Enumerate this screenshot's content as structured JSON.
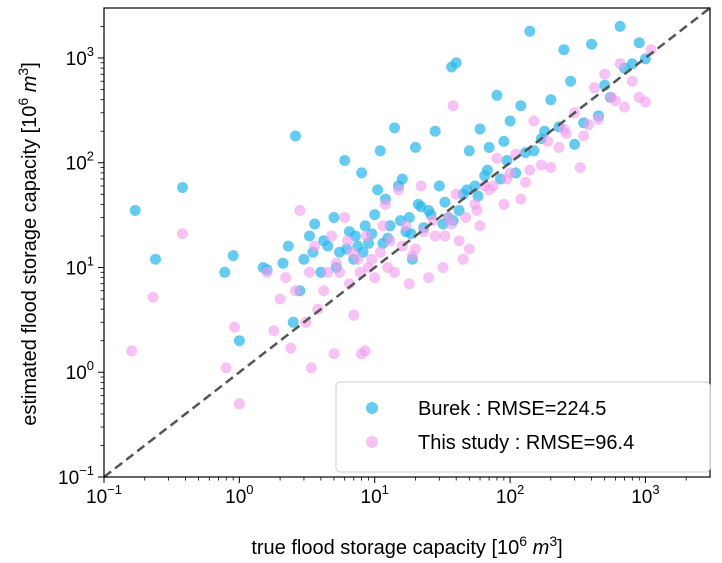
{
  "chart_data": {
    "type": "scatter",
    "xscale": "log",
    "yscale": "log",
    "xlim": [
      0.1,
      3000
    ],
    "ylim": [
      0.1,
      3000
    ],
    "grid": false,
    "legend_placement": "lower-right",
    "xlabel": {
      "main": "true flood storage capacity [10",
      "sup": "6",
      "unit": "m",
      "unit_sup": "3",
      "close": "]"
    },
    "ylabel": {
      "main": "estimated flood storage capacity [10",
      "sup": "6",
      "unit": "m",
      "unit_sup": "3",
      "close": "]"
    },
    "x_ticks": [
      {
        "value": 0.1,
        "base": "10",
        "exp": "−1"
      },
      {
        "value": 1,
        "base": "10",
        "exp": "0"
      },
      {
        "value": 10,
        "base": "10",
        "exp": "1"
      },
      {
        "value": 100,
        "base": "10",
        "exp": "2"
      },
      {
        "value": 1000,
        "base": "10",
        "exp": "3"
      }
    ],
    "y_ticks": [
      {
        "value": 0.1,
        "base": "10",
        "exp": "−1"
      },
      {
        "value": 1,
        "base": "10",
        "exp": "0"
      },
      {
        "value": 10,
        "base": "10",
        "exp": "1"
      },
      {
        "value": 100,
        "base": "10",
        "exp": "2"
      },
      {
        "value": 1000,
        "base": "10",
        "exp": "3"
      }
    ],
    "reference_line": {
      "type": "1:1",
      "style": "dashed",
      "color": "#555555"
    },
    "series": [
      {
        "name": "Burek : RMSE=224.5",
        "color": "#2bb7ea",
        "points": [
          [
            0.17,
            35
          ],
          [
            0.24,
            12
          ],
          [
            0.38,
            58
          ],
          [
            0.78,
            9
          ],
          [
            0.9,
            13
          ],
          [
            1.0,
            2.0
          ],
          [
            1.6,
            9.5
          ],
          [
            2.3,
            16
          ],
          [
            2.5,
            3
          ],
          [
            2.6,
            180
          ],
          [
            3.0,
            12
          ],
          [
            3.3,
            20
          ],
          [
            3.6,
            26
          ],
          [
            4.0,
            9
          ],
          [
            4.5,
            16
          ],
          [
            5,
            30
          ],
          [
            5.5,
            14
          ],
          [
            6,
            105
          ],
          [
            6.5,
            22
          ],
          [
            7,
            12
          ],
          [
            7.5,
            16
          ],
          [
            8,
            80
          ],
          [
            8.5,
            25
          ],
          [
            9,
            17
          ],
          [
            10,
            32
          ],
          [
            10.5,
            55
          ],
          [
            11,
            130
          ],
          [
            11.5,
            17
          ],
          [
            12,
            45
          ],
          [
            13,
            25
          ],
          [
            14,
            215
          ],
          [
            15,
            60
          ],
          [
            16,
            70
          ],
          [
            17,
            22
          ],
          [
            18,
            30
          ],
          [
            19,
            12
          ],
          [
            20,
            140
          ],
          [
            21,
            40
          ],
          [
            23,
            24
          ],
          [
            25,
            35
          ],
          [
            28,
            200
          ],
          [
            30,
            60
          ],
          [
            32,
            26
          ],
          [
            35,
            30
          ],
          [
            37,
            820
          ],
          [
            40,
            900
          ],
          [
            42,
            35
          ],
          [
            45,
            50
          ],
          [
            50,
            130
          ],
          [
            55,
            60
          ],
          [
            60,
            210
          ],
          [
            65,
            75
          ],
          [
            70,
            140
          ],
          [
            80,
            440
          ],
          [
            90,
            160
          ],
          [
            100,
            250
          ],
          [
            110,
            80
          ],
          [
            120,
            350
          ],
          [
            140,
            1800
          ],
          [
            150,
            130
          ],
          [
            170,
            170
          ],
          [
            200,
            400
          ],
          [
            230,
            220
          ],
          [
            250,
            1200
          ],
          [
            280,
            600
          ],
          [
            300,
            150
          ],
          [
            350,
            240
          ],
          [
            400,
            1350
          ],
          [
            450,
            280
          ],
          [
            500,
            550
          ],
          [
            550,
            420
          ],
          [
            650,
            2000
          ],
          [
            700,
            800
          ],
          [
            800,
            880
          ],
          [
            900,
            1400
          ],
          [
            1000,
            980
          ],
          [
            1.5,
            10
          ],
          [
            2.1,
            11
          ],
          [
            2.8,
            6
          ],
          [
            3.5,
            14
          ],
          [
            4.2,
            18
          ],
          [
            5.2,
            10
          ],
          [
            6.2,
            15
          ],
          [
            7.2,
            20
          ],
          [
            8.2,
            14
          ],
          [
            9.5,
            21
          ],
          [
            12.5,
            19
          ],
          [
            15.5,
            28
          ],
          [
            18.5,
            21
          ],
          [
            22,
            38
          ],
          [
            26,
            32
          ],
          [
            33,
            42
          ],
          [
            38,
            28
          ],
          [
            48,
            55
          ],
          [
            58,
            48
          ],
          [
            68,
            85
          ],
          [
            85,
            70
          ],
          [
            95,
            105
          ],
          [
            130,
            125
          ],
          [
            180,
            200
          ]
        ]
      },
      {
        "name": "This study : RMSE=96.4",
        "color": "#f29cee",
        "points": [
          [
            0.16,
            1.6
          ],
          [
            0.23,
            5.2
          ],
          [
            0.38,
            21
          ],
          [
            0.8,
            1.1
          ],
          [
            0.92,
            2.7
          ],
          [
            1.0,
            0.5
          ],
          [
            1.6,
            9
          ],
          [
            2.0,
            5
          ],
          [
            2.4,
            1.7
          ],
          [
            2.8,
            35
          ],
          [
            3.1,
            3
          ],
          [
            3.4,
            1.1
          ],
          [
            3.8,
            4
          ],
          [
            4.2,
            6
          ],
          [
            5,
            1.5
          ],
          [
            5.5,
            9
          ],
          [
            6,
            30
          ],
          [
            6.5,
            7
          ],
          [
            7,
            3.5
          ],
          [
            7.5,
            12
          ],
          [
            8,
            1.5
          ],
          [
            8.5,
            1.6
          ],
          [
            9,
            10
          ],
          [
            10,
            8
          ],
          [
            11,
            14
          ],
          [
            12,
            40
          ],
          [
            13,
            18
          ],
          [
            14,
            9
          ],
          [
            15,
            55
          ],
          [
            17,
            25
          ],
          [
            18,
            7
          ],
          [
            20,
            15
          ],
          [
            22,
            60
          ],
          [
            25,
            8
          ],
          [
            28,
            20
          ],
          [
            32,
            10
          ],
          [
            35,
            30
          ],
          [
            38,
            350
          ],
          [
            40,
            50
          ],
          [
            42,
            18
          ],
          [
            45,
            12
          ],
          [
            50,
            15
          ],
          [
            55,
            40
          ],
          [
            60,
            25
          ],
          [
            65,
            60
          ],
          [
            70,
            55
          ],
          [
            80,
            110
          ],
          [
            90,
            40
          ],
          [
            100,
            80
          ],
          [
            110,
            120
          ],
          [
            120,
            45
          ],
          [
            130,
            65
          ],
          [
            150,
            250
          ],
          [
            170,
            95
          ],
          [
            200,
            90
          ],
          [
            230,
            140
          ],
          [
            260,
            190
          ],
          [
            300,
            300
          ],
          [
            330,
            90
          ],
          [
            380,
            230
          ],
          [
            420,
            520
          ],
          [
            500,
            700
          ],
          [
            560,
            420
          ],
          [
            650,
            880
          ],
          [
            700,
            340
          ],
          [
            800,
            600
          ],
          [
            900,
            420
          ],
          [
            1000,
            380
          ],
          [
            1100,
            1200
          ],
          [
            1.8,
            2.5
          ],
          [
            2.2,
            8
          ],
          [
            2.6,
            6
          ],
          [
            3.3,
            9
          ],
          [
            4.5,
            9
          ],
          [
            5.2,
            11
          ],
          [
            6.8,
            14
          ],
          [
            7.8,
            9
          ],
          [
            9.5,
            12
          ],
          [
            12.5,
            10
          ],
          [
            16,
            16
          ],
          [
            19,
            13
          ],
          [
            23,
            22
          ],
          [
            27,
            28
          ],
          [
            33,
            20
          ],
          [
            37,
            26
          ],
          [
            47,
            30
          ],
          [
            57,
            35
          ],
          [
            75,
            60
          ],
          [
            95,
            70
          ],
          [
            140,
            85
          ],
          [
            190,
            160
          ],
          [
            250,
            210
          ],
          [
            350,
            180
          ],
          [
            450,
            260
          ],
          [
            600,
            390
          ],
          [
            3.6,
            16
          ],
          [
            4.8,
            20
          ],
          [
            6.3,
            18
          ],
          [
            8.7,
            20
          ],
          [
            11.5,
            25
          ]
        ]
      }
    ]
  }
}
